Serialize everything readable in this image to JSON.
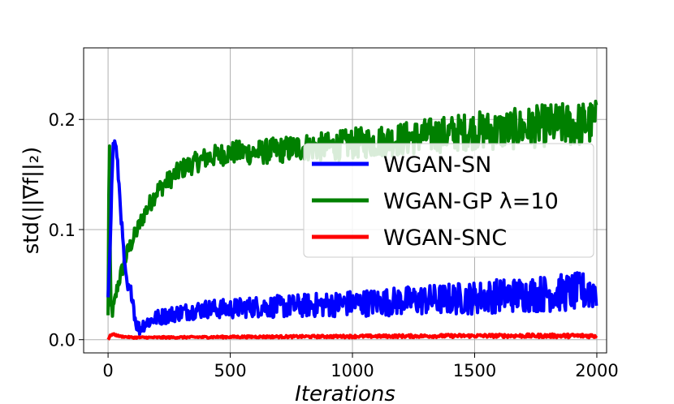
{
  "chart_data": {
    "type": "line",
    "title": "",
    "xlabel": "Iterations",
    "ylabel": "std(||∇f||₂)",
    "xlim": [
      -100,
      2040
    ],
    "ylim": [
      -0.012,
      0.265
    ],
    "xticks": [
      0,
      500,
      1000,
      1500,
      2000
    ],
    "xtick_labels": [
      "0",
      "500",
      "1000",
      "1500",
      "2000"
    ],
    "yticks": [
      0.0,
      0.1,
      0.2
    ],
    "ytick_labels": [
      "0.0",
      "0.1",
      "0.2"
    ],
    "grid": true,
    "legend_position": "center-right",
    "series": [
      {
        "name": "WGAN-SN",
        "color": "#0000ff",
        "noise": 0.012,
        "x": [
          0,
          10,
          20,
          30,
          40,
          50,
          60,
          70,
          80,
          90,
          100,
          110,
          120,
          130,
          140,
          150,
          200,
          300,
          400,
          500,
          600,
          700,
          800,
          900,
          1000,
          1100,
          1200,
          1300,
          1400,
          1500,
          1600,
          1700,
          1800,
          1900,
          2000
        ],
        "y": [
          0.04,
          0.1,
          0.175,
          0.18,
          0.155,
          0.125,
          0.09,
          0.06,
          0.045,
          0.045,
          0.04,
          0.02,
          0.012,
          0.01,
          0.013,
          0.015,
          0.02,
          0.025,
          0.028,
          0.028,
          0.03,
          0.03,
          0.031,
          0.032,
          0.033,
          0.034,
          0.035,
          0.036,
          0.037,
          0.038,
          0.04,
          0.041,
          0.042,
          0.043,
          0.045
        ]
      },
      {
        "name": "WGAN-GP λ=10",
        "color": "#008000",
        "noise": 0.014,
        "x": [
          0,
          5,
          10,
          20,
          40,
          60,
          80,
          100,
          150,
          200,
          300,
          400,
          500,
          600,
          700,
          800,
          900,
          1000,
          1100,
          1200,
          1300,
          1400,
          1500,
          1600,
          1700,
          1800,
          1900,
          2000
        ],
        "y": [
          0.02,
          0.21,
          0.03,
          0.025,
          0.05,
          0.065,
          0.08,
          0.09,
          0.115,
          0.135,
          0.155,
          0.165,
          0.17,
          0.17,
          0.172,
          0.175,
          0.175,
          0.178,
          0.18,
          0.182,
          0.185,
          0.187,
          0.19,
          0.19,
          0.192,
          0.195,
          0.195,
          0.197
        ]
      },
      {
        "name": "WGAN-SNC",
        "color": "#ff0000",
        "noise": 0.0012,
        "x": [
          0,
          10,
          20,
          50,
          100,
          200,
          500,
          1000,
          1500,
          2000
        ],
        "y": [
          0.0,
          0.004,
          0.005,
          0.003,
          0.002,
          0.002,
          0.0025,
          0.003,
          0.0035,
          0.0035
        ]
      }
    ]
  }
}
